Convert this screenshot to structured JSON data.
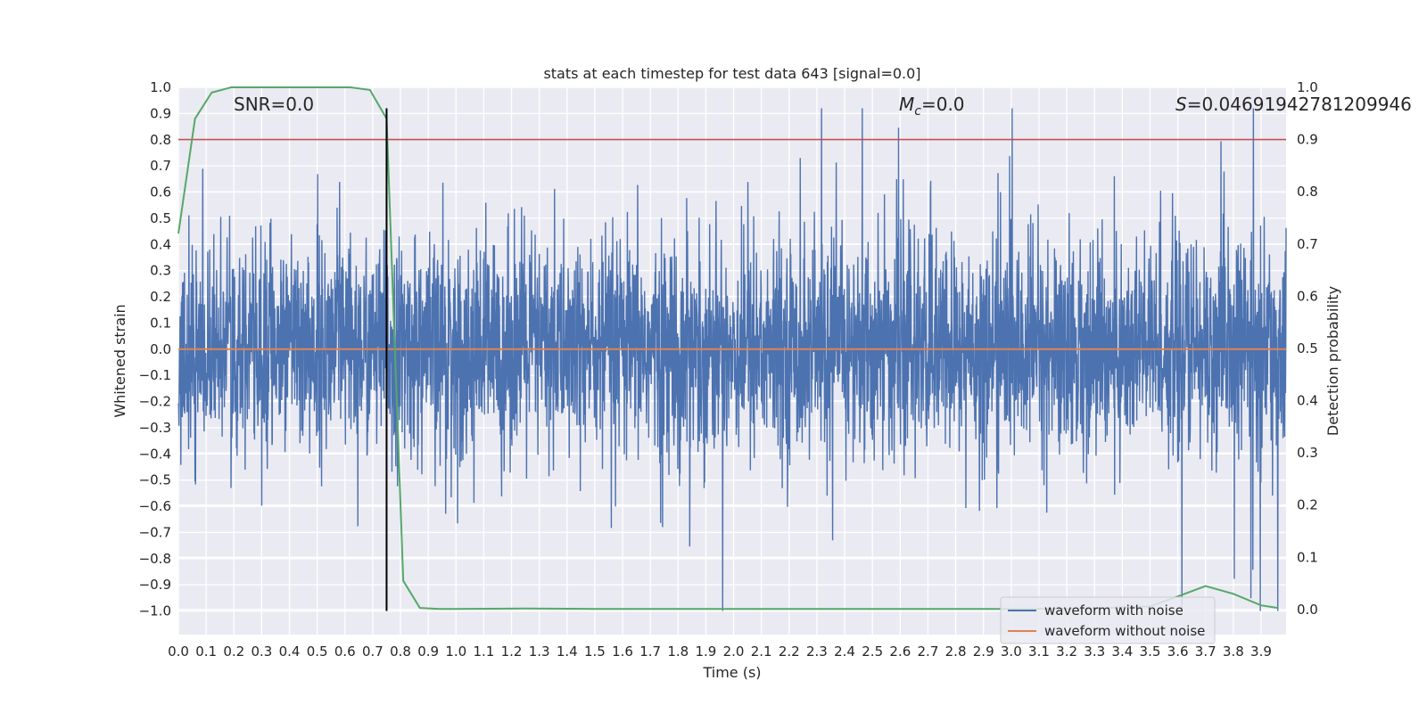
{
  "chart_data": {
    "type": "line",
    "title": "stats at each timestep for test data 643 [signal=0.0]",
    "xlabel": "Time (s)",
    "ylabel": "Whitened strain",
    "y2label": "Detection probability",
    "xlim": [
      0.0,
      3.99
    ],
    "ylim": [
      -1.09,
      1.0
    ],
    "y2lim": [
      -0.048,
      1.0
    ],
    "xticks": [
      "0.0",
      "0.1",
      "0.2",
      "0.3",
      "0.4",
      "0.5",
      "0.6",
      "0.7",
      "0.8",
      "0.9",
      "1.0",
      "1.1",
      "1.2",
      "1.3",
      "1.4",
      "1.5",
      "1.6",
      "1.7",
      "1.8",
      "1.9",
      "2.0",
      "2.1",
      "2.2",
      "2.3",
      "2.4",
      "2.5",
      "2.6",
      "2.7",
      "2.8",
      "2.9",
      "3.0",
      "3.1",
      "3.2",
      "3.3",
      "3.4",
      "3.5",
      "3.6",
      "3.7",
      "3.8",
      "3.9"
    ],
    "yticks": [
      "1.0",
      "0.9",
      "0.8",
      "0.7",
      "0.6",
      "0.5",
      "0.4",
      "0.3",
      "0.2",
      "0.1",
      "0.0",
      "−0.1",
      "−0.2",
      "−0.3",
      "−0.4",
      "−0.5",
      "−0.6",
      "−0.7",
      "−0.8",
      "−0.9",
      "−1.0"
    ],
    "y2ticks": [
      "1.0",
      "0.9",
      "0.8",
      "0.7",
      "0.6",
      "0.5",
      "0.4",
      "0.3",
      "0.2",
      "0.1",
      "0.0"
    ],
    "grid": true,
    "annotations": {
      "snr": "SNR=0.0",
      "mc_symbol": "M",
      "mc_sub": "c",
      "mc_value": "=0.0",
      "s_symbol": "S",
      "s_value": "=0.04691942781209946"
    },
    "series": [
      {
        "name": "waveform with noise",
        "color": "#4c72b0",
        "axis": "left",
        "noise_amplitude": 0.2,
        "peak_max": 0.92,
        "peak_min": -1.0
      },
      {
        "name": "waveform without noise",
        "color": "#dd8452",
        "axis": "left",
        "x": [
          0.0,
          3.99
        ],
        "y": [
          0.0,
          0.0
        ]
      },
      {
        "name": "",
        "color": "#55a868",
        "axis": "right",
        "x": [
          0.0,
          0.06,
          0.12,
          0.19,
          0.25,
          0.31,
          0.37,
          0.44,
          0.5,
          0.56,
          0.62,
          0.69,
          0.75,
          0.81,
          0.87,
          0.94,
          1.0,
          1.25,
          1.5,
          2.0,
          2.5,
          3.0,
          3.3,
          3.5,
          3.6,
          3.7,
          3.8,
          3.9,
          3.96
        ],
        "y": [
          0.72,
          0.94,
          0.99,
          1.0,
          1.0,
          1.0,
          1.0,
          1.0,
          1.0,
          1.0,
          1.0,
          0.995,
          0.94,
          0.055,
          0.003,
          0.001,
          0.001,
          0.002,
          0.001,
          0.001,
          0.001,
          0.001,
          0.002,
          0.006,
          0.025,
          0.045,
          0.03,
          0.008,
          0.003
        ]
      }
    ],
    "threshold_line": {
      "axis": "right",
      "y": 0.9,
      "color": "#c44e52"
    },
    "marker_line": {
      "x": 0.75,
      "y_from": -1.0,
      "y_to": 0.92,
      "color": "#000000"
    },
    "legend": {
      "placement": "lower-right",
      "entries": [
        "waveform with noise",
        "waveform without noise"
      ]
    }
  }
}
